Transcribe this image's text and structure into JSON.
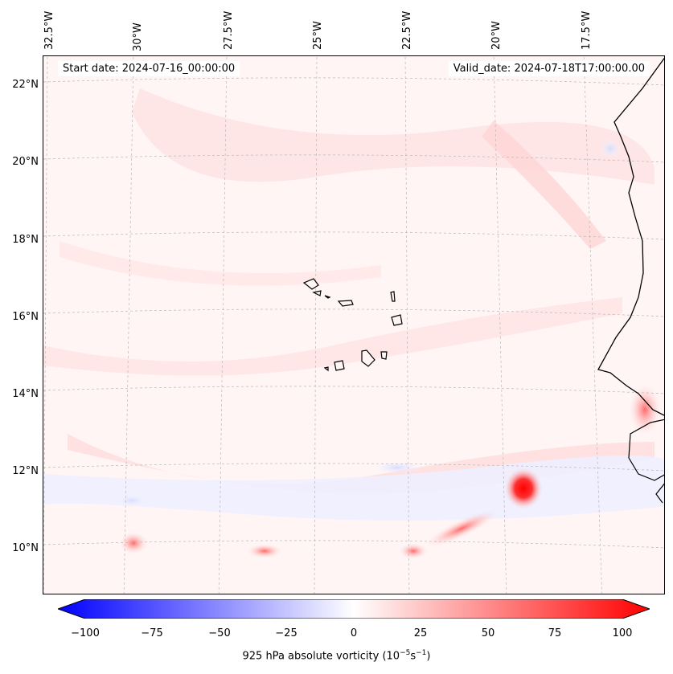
{
  "map": {
    "start_date": "Start date: 2024-07-16_00:00:00",
    "valid_date": "Valid_date: 2024-07-18T17:00:00.00",
    "lon_labels": [
      "32.5°W",
      "30°W",
      "27.5°W",
      "25°W",
      "22.5°W",
      "20°W",
      "17.5°W"
    ],
    "lat_labels": [
      "22°N",
      "20°N",
      "18°N",
      "16°N",
      "14°N",
      "12°N",
      "10°N"
    ],
    "colors": {
      "neg": "#0000ff",
      "pos": "#ff0000",
      "mid": "#ffffff",
      "background": "#fff5f5"
    }
  },
  "colorbar": {
    "ticks": [
      "−100",
      "−75",
      "−50",
      "−25",
      "0",
      "25",
      "50",
      "75",
      "100"
    ],
    "label_prefix": "925 hPa absolute vorticity (10",
    "label_exp1": "−5",
    "label_mid": "s",
    "label_exp2": "−1",
    "label_suffix": ")",
    "range": [
      -100,
      100
    ]
  }
}
